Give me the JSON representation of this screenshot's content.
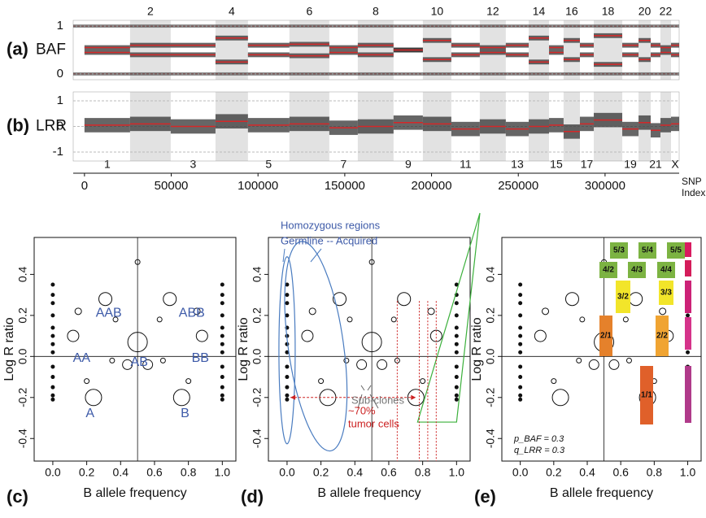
{
  "chart_data": [
    {
      "type": "baf-track",
      "panel": "(a)",
      "ylabel": "BAF",
      "categories": [
        null,
        "2",
        null,
        "4",
        null,
        "6",
        null,
        "8",
        null,
        "10",
        null,
        "12",
        null,
        "14",
        null,
        "16",
        null,
        "18",
        null,
        "20",
        null,
        "22",
        null
      ],
      "bins": [
        0,
        26250,
        49700,
        75500,
        94200,
        118100,
        141100,
        157500,
        178100,
        195000,
        211400,
        227800,
        242800,
        256000,
        267700,
        276100,
        285500,
        293500,
        309900,
        319300,
        326300,
        331900,
        338000,
        342700
      ],
      "xlim": [
        -6500,
        342700
      ],
      "ylim": [
        -0.12,
        1.12
      ],
      "yticks": [
        0,
        1
      ],
      "series": [
        {
          "color": "#d62728",
          "values": [
            0.55,
            0.6,
            0.6,
            0.75,
            0.6,
            0.62,
            0.55,
            0.6,
            0.5,
            0.7,
            0.6,
            0.55,
            0.6,
            0.75,
            0.55,
            0.7,
            0.6,
            0.8,
            0.6,
            0.7,
            0.6,
            0.55,
            0.6
          ]
        },
        {
          "color": "#d62728",
          "values": [
            0.45,
            0.4,
            0.4,
            0.25,
            0.4,
            0.38,
            0.45,
            0.4,
            0.5,
            0.3,
            0.4,
            0.45,
            0.4,
            0.25,
            0.45,
            0.3,
            0.4,
            0.2,
            0.4,
            0.3,
            0.4,
            0.45,
            0.4
          ]
        }
      ]
    },
    {
      "type": "lrr-track",
      "panel": "(b)",
      "ylabel": "LRR",
      "categories": [
        "1",
        null,
        "3",
        null,
        "5",
        null,
        "7",
        null,
        "9",
        null,
        "11",
        null,
        "13",
        null,
        "15",
        null,
        "17",
        null,
        "19",
        null,
        "21",
        null,
        "X"
      ],
      "bins": [
        0,
        26250,
        49700,
        75500,
        94200,
        118100,
        141100,
        157500,
        178100,
        195000,
        211400,
        227800,
        242800,
        256000,
        267700,
        276100,
        285500,
        293500,
        309900,
        319300,
        326300,
        331900,
        338000,
        342700
      ],
      "xlim": [
        -6500,
        342700
      ],
      "ylim": [
        -1.35,
        1.35
      ],
      "yticks": [
        -1,
        0,
        1
      ],
      "xticks": [
        0,
        50000,
        100000,
        150000,
        200000,
        250000,
        300000
      ],
      "xlabel": [
        "SNP",
        "Index"
      ],
      "series": [
        {
          "color": "#d62728",
          "values": [
            0.05,
            0.1,
            0.0,
            0.2,
            0.05,
            0.1,
            -0.05,
            0.0,
            0.15,
            0.1,
            -0.1,
            0.0,
            -0.1,
            0.0,
            0.05,
            -0.2,
            0.1,
            0.25,
            -0.1,
            0.15,
            -0.15,
            0.05,
            0.1
          ]
        }
      ]
    },
    {
      "type": "scatter",
      "panel": "(c)",
      "xlabel": "B allele frequency",
      "ylabel": "Log R ratio",
      "xlim": [
        -0.11,
        1.08
      ],
      "ylim": [
        -0.51,
        0.58
      ],
      "xticks": [
        {
          "value": 0,
          "label": "0.0"
        },
        {
          "value": 0.2,
          "label": "0.2"
        },
        {
          "value": 0.4,
          "label": "0.4"
        },
        {
          "value": 0.6,
          "label": "0.6"
        },
        {
          "value": 0.8,
          "label": "0.8"
        },
        {
          "value": 1,
          "label": "1.0"
        }
      ],
      "yticks": [
        {
          "value": -0.4,
          "label": "-0.4"
        },
        {
          "value": -0.2,
          "label": "-0.2"
        },
        {
          "value": 0,
          "label": "0.0"
        },
        {
          "value": 0.2,
          "label": "0.2"
        },
        {
          "value": 0.4,
          "label": "0.4"
        }
      ],
      "x": [
        0,
        0,
        0,
        0,
        0,
        0,
        0,
        0,
        0,
        0,
        0,
        0,
        0,
        1,
        1,
        1,
        1,
        1,
        1,
        1,
        1,
        1,
        1,
        1,
        1,
        1,
        0.24,
        0.76,
        0.12,
        0.88,
        0.31,
        0.69,
        0.5,
        0.5,
        0.44,
        0.56,
        0.15,
        0.85,
        0.37,
        0.63,
        0.2,
        0.8,
        0.35,
        0.65
      ],
      "values": [
        -0.21,
        -0.19,
        -0.15,
        -0.1,
        -0.05,
        0.02,
        0.06,
        0.1,
        0.14,
        0.2,
        0.26,
        0.3,
        0.35,
        -0.21,
        -0.19,
        -0.15,
        -0.1,
        -0.05,
        0.02,
        0.06,
        0.1,
        0.14,
        0.2,
        0.26,
        0.3,
        0.35,
        -0.2,
        -0.2,
        0.1,
        0.1,
        0.28,
        0.28,
        0.07,
        0.46,
        -0.04,
        -0.04,
        0.22,
        0.22,
        0.18,
        0.18,
        -0.12,
        -0.12,
        -0.02,
        -0.02
      ],
      "sizes": [
        2,
        2,
        2,
        2,
        2,
        2,
        2,
        2,
        2,
        2,
        2,
        2,
        2,
        2,
        2,
        2,
        2,
        2,
        2,
        2,
        2,
        2,
        2,
        2,
        2,
        2,
        10,
        10,
        7,
        7,
        8,
        8,
        12,
        3,
        6,
        6,
        4,
        4,
        3,
        3,
        3,
        3,
        3,
        3
      ],
      "annotations": [
        "AA",
        "AAB",
        "A",
        "AB",
        "ABB",
        "BB",
        "B"
      ]
    },
    {
      "type": "scatter",
      "panel": "(d)",
      "xlabel": "B allele frequency",
      "ylabel": "Log R ratio",
      "xlim": [
        -0.11,
        1.08
      ],
      "ylim": [
        -0.51,
        0.58
      ],
      "xticks": [
        {
          "value": 0,
          "label": "0.0"
        },
        {
          "value": 0.2,
          "label": "0.2"
        },
        {
          "value": 0.4,
          "label": "0.4"
        },
        {
          "value": 0.6,
          "label": "0.6"
        },
        {
          "value": 0.8,
          "label": "0.8"
        },
        {
          "value": 1,
          "label": "1.0"
        }
      ],
      "yticks": [
        {
          "value": -0.4,
          "label": "-0.4"
        },
        {
          "value": -0.2,
          "label": "-0.2"
        },
        {
          "value": 0,
          "label": "0.0"
        },
        {
          "value": 0.2,
          "label": "0.2"
        },
        {
          "value": 0.4,
          "label": "0.4"
        }
      ],
      "x": [
        0,
        0,
        0,
        0,
        0,
        0,
        0,
        0,
        0,
        0,
        0,
        0,
        0,
        1,
        1,
        1,
        1,
        1,
        1,
        1,
        1,
        1,
        1,
        1,
        1,
        1,
        0.24,
        0.76,
        0.12,
        0.88,
        0.31,
        0.69,
        0.5,
        0.5,
        0.44,
        0.56,
        0.15,
        0.85,
        0.37,
        0.63,
        0.2,
        0.8,
        0.35,
        0.65
      ],
      "values": [
        -0.21,
        -0.19,
        -0.15,
        -0.1,
        -0.05,
        0.02,
        0.06,
        0.1,
        0.14,
        0.2,
        0.26,
        0.3,
        0.35,
        -0.21,
        -0.19,
        -0.15,
        -0.1,
        -0.05,
        0.02,
        0.06,
        0.1,
        0.14,
        0.2,
        0.26,
        0.3,
        0.35,
        -0.2,
        -0.2,
        0.1,
        0.1,
        0.28,
        0.28,
        0.07,
        0.46,
        -0.04,
        -0.04,
        0.22,
        0.22,
        0.18,
        0.18,
        -0.12,
        -0.12,
        -0.02,
        -0.02
      ],
      "sizes": [
        2,
        2,
        2,
        2,
        2,
        2,
        2,
        2,
        2,
        2,
        2,
        2,
        2,
        2,
        2,
        2,
        2,
        2,
        2,
        2,
        2,
        2,
        2,
        2,
        2,
        2,
        10,
        10,
        7,
        7,
        8,
        8,
        12,
        3,
        6,
        6,
        4,
        4,
        3,
        3,
        3,
        3,
        3,
        3
      ],
      "annotations": [
        "Homozygous regions",
        "Germline -- Acquired",
        "Sub-clones",
        "~70%",
        "tumor cells"
      ]
    },
    {
      "type": "scatter",
      "panel": "(e)",
      "xlabel": "B allele frequency",
      "ylabel": "Log R ratio",
      "xlim": [
        -0.11,
        1.08
      ],
      "ylim": [
        -0.51,
        0.58
      ],
      "xticks": [
        {
          "value": 0,
          "label": "0.0"
        },
        {
          "value": 0.2,
          "label": "0.2"
        },
        {
          "value": 0.4,
          "label": "0.4"
        },
        {
          "value": 0.6,
          "label": "0.6"
        },
        {
          "value": 0.8,
          "label": "0.8"
        },
        {
          "value": 1,
          "label": "1.0"
        }
      ],
      "yticks": [
        {
          "value": -0.4,
          "label": "-0.4"
        },
        {
          "value": -0.2,
          "label": "-0.2"
        },
        {
          "value": 0,
          "label": "0.0"
        },
        {
          "value": 0.2,
          "label": "0.2"
        },
        {
          "value": 0.4,
          "label": "0.4"
        }
      ],
      "x": [
        0,
        0,
        0,
        0,
        0,
        0,
        0,
        0,
        0,
        0,
        0,
        0,
        0,
        1,
        1,
        1,
        1,
        1,
        1,
        1,
        1,
        1,
        1,
        1,
        1,
        1,
        0.24,
        0.76,
        0.12,
        0.88,
        0.31,
        0.69,
        0.5,
        0.5,
        0.44,
        0.56,
        0.15,
        0.85,
        0.37,
        0.63,
        0.2,
        0.8,
        0.35,
        0.65
      ],
      "values": [
        -0.21,
        -0.19,
        -0.15,
        -0.1,
        -0.05,
        0.02,
        0.06,
        0.1,
        0.14,
        0.2,
        0.26,
        0.3,
        0.35,
        -0.21,
        -0.19,
        -0.15,
        -0.1,
        -0.05,
        0.02,
        0.06,
        0.1,
        0.14,
        0.2,
        0.26,
        0.3,
        0.35,
        -0.2,
        -0.2,
        0.1,
        0.1,
        0.28,
        0.28,
        0.07,
        0.46,
        -0.04,
        -0.04,
        0.22,
        0.22,
        0.18,
        0.18,
        -0.12,
        -0.12,
        -0.02,
        -0.02
      ],
      "sizes": [
        2,
        2,
        2,
        2,
        2,
        2,
        2,
        2,
        2,
        2,
        2,
        2,
        2,
        2,
        2,
        2,
        2,
        2,
        2,
        2,
        2,
        2,
        2,
        2,
        2,
        2,
        10,
        10,
        7,
        7,
        8,
        8,
        12,
        3,
        6,
        6,
        4,
        4,
        3,
        3,
        3,
        3,
        3,
        3
      ],
      "annotations": [
        "p_BAF = 0.3",
        "q_LRR = 0.3"
      ],
      "states": [
        {
          "label": "5/3",
          "color": "#7cb342"
        },
        {
          "label": "5/4",
          "color": "#7cb342"
        },
        {
          "label": "5/5",
          "color": "#7cb342"
        },
        {
          "label": "4/2",
          "color": "#7cb342"
        },
        {
          "label": "4/3",
          "color": "#7cb342"
        },
        {
          "label": "4/4",
          "color": "#7cb342"
        },
        {
          "label": "3/2",
          "color": "#f2e52a"
        },
        {
          "label": "3/3",
          "color": "#f2e52a"
        },
        {
          "label": "2/1",
          "color": "#e5812b"
        },
        {
          "label": "2/2",
          "color": "#f0a432"
        },
        {
          "label": "1/1",
          "color": "#e0602a"
        }
      ]
    }
  ]
}
